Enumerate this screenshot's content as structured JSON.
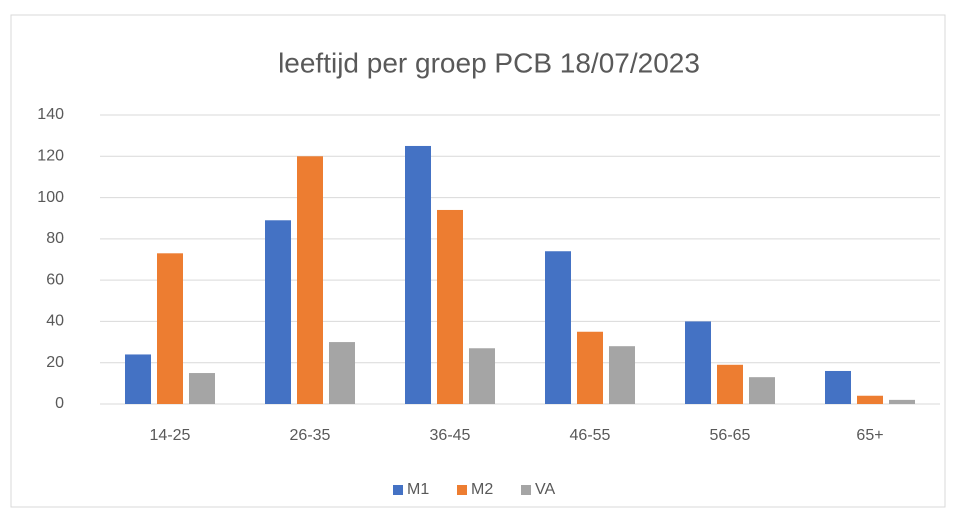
{
  "chart_data": {
    "type": "bar",
    "title": "leeftijd per groep PCB 18/07/2023",
    "categories": [
      "14-25",
      "26-35",
      "36-45",
      "46-55",
      "56-65",
      "65+"
    ],
    "series": [
      {
        "name": "M1",
        "color": "#4472c4",
        "values": [
          24,
          89,
          125,
          74,
          40,
          16
        ]
      },
      {
        "name": "M2",
        "color": "#ed7d31",
        "values": [
          73,
          120,
          94,
          35,
          19,
          4
        ]
      },
      {
        "name": "VA",
        "color": "#a5a5a5",
        "values": [
          15,
          30,
          27,
          28,
          13,
          2
        ]
      }
    ],
    "ylim": [
      0,
      140
    ],
    "yticks": [
      0,
      20,
      40,
      60,
      80,
      100,
      120,
      140
    ],
    "grid": true,
    "legend": "bottom"
  }
}
